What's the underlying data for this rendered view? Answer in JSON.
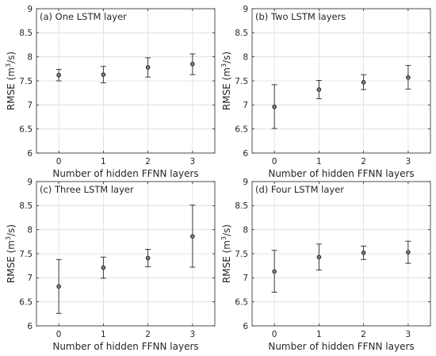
{
  "chart_data": [
    {
      "type": "scatter",
      "title": "(a) One LSTM layer",
      "xlabel": "Number of hidden FFNN layers",
      "ylabel": "RMSE (m",
      "ylabel_sup": "3",
      "ylabel_tail": "/s)",
      "x": [
        0,
        1,
        2,
        3
      ],
      "y": [
        7.62,
        7.63,
        7.78,
        7.85
      ],
      "err_low": [
        7.5,
        7.46,
        7.58,
        7.63
      ],
      "err_high": [
        7.74,
        7.8,
        7.98,
        8.06
      ],
      "xlim": [
        -0.5,
        3.5
      ],
      "ylim": [
        6,
        9
      ],
      "xticks": [
        "0",
        "1",
        "2",
        "3"
      ],
      "yticks": [
        "6",
        "6.5",
        "7",
        "7.5",
        "8",
        "8.5",
        "9"
      ],
      "grid": true
    },
    {
      "type": "scatter",
      "title": "(b) Two LSTM layers",
      "xlabel": "Number of hidden FFNN layers",
      "ylabel": "RMSE (m",
      "ylabel_sup": "3",
      "ylabel_tail": "/s)",
      "x": [
        0,
        1,
        2,
        3
      ],
      "y": [
        6.96,
        7.32,
        7.47,
        7.57
      ],
      "err_low": [
        6.51,
        7.13,
        7.32,
        7.33
      ],
      "err_high": [
        7.42,
        7.51,
        7.63,
        7.82
      ],
      "xlim": [
        -0.5,
        3.5
      ],
      "ylim": [
        6,
        9
      ],
      "xticks": [
        "0",
        "1",
        "2",
        "3"
      ],
      "yticks": [
        "6",
        "6.5",
        "7",
        "7.5",
        "8",
        "8.5",
        "9"
      ],
      "grid": true
    },
    {
      "type": "scatter",
      "title": "(c) Three LSTM layer",
      "xlabel": "Number of hidden FFNN layers",
      "ylabel": "RMSE (m",
      "ylabel_sup": "3",
      "ylabel_tail": "/s)",
      "x": [
        0,
        1,
        2,
        3
      ],
      "y": [
        6.82,
        7.21,
        7.41,
        7.86
      ],
      "err_low": [
        6.26,
        6.99,
        7.23,
        7.22
      ],
      "err_high": [
        7.38,
        7.43,
        7.59,
        8.51
      ],
      "xlim": [
        -0.5,
        3.5
      ],
      "ylim": [
        6,
        9
      ],
      "xticks": [
        "0",
        "1",
        "2",
        "3"
      ],
      "yticks": [
        "6",
        "6.5",
        "7",
        "7.5",
        "8",
        "8.5",
        "9"
      ],
      "grid": true
    },
    {
      "type": "scatter",
      "title": "(d) Four LSTM layer",
      "xlabel": "Number of hidden FFNN layers",
      "ylabel": "RMSE (m",
      "ylabel_sup": "3",
      "ylabel_tail": "/s)",
      "x": [
        0,
        1,
        2,
        3
      ],
      "y": [
        7.13,
        7.43,
        7.52,
        7.53
      ],
      "err_low": [
        6.7,
        7.16,
        7.38,
        7.3
      ],
      "err_high": [
        7.57,
        7.7,
        7.66,
        7.76
      ],
      "xlim": [
        -0.5,
        3.5
      ],
      "ylim": [
        6,
        9
      ],
      "xticks": [
        "0",
        "1",
        "2",
        "3"
      ],
      "yticks": [
        "6",
        "6.5",
        "7",
        "7.5",
        "8",
        "8.5",
        "9"
      ],
      "grid": true
    }
  ],
  "colors": {
    "marker_edge": "#262626",
    "marker_fill": "#808080",
    "errorbar": "#262626",
    "grid": "#dcdcdc",
    "axes": "#262626"
  }
}
